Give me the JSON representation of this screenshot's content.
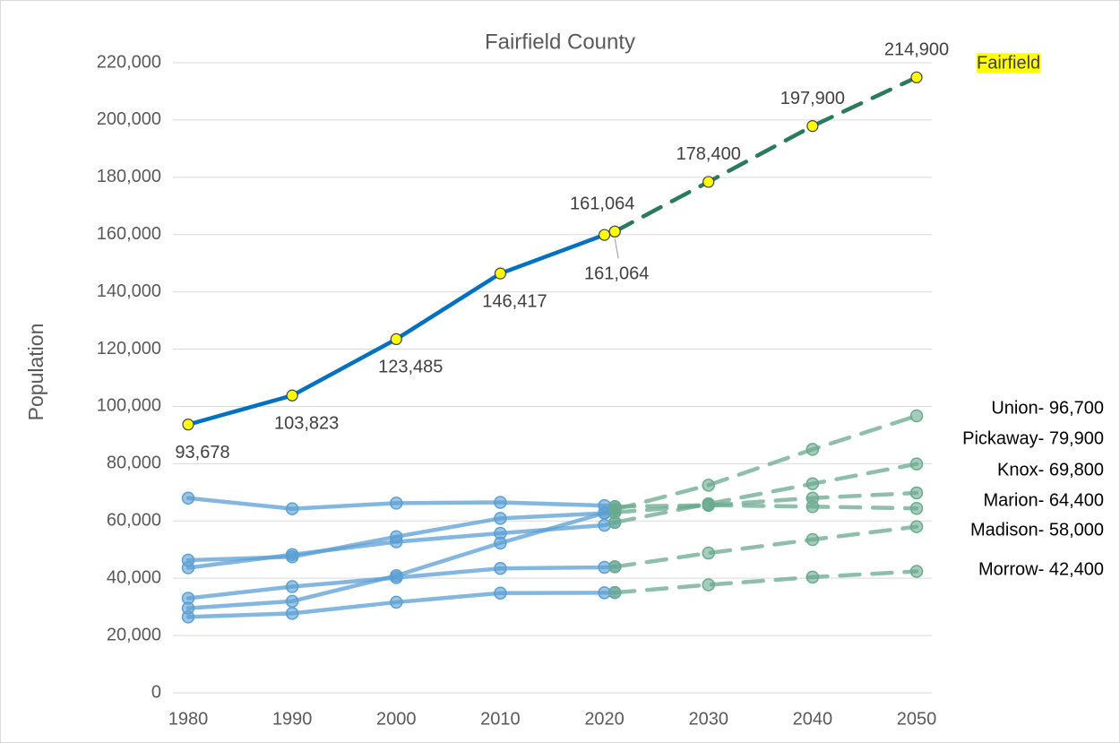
{
  "chart_data": {
    "type": "line",
    "title": "Fairfield County",
    "y_label": "Population",
    "x": [
      1980,
      1990,
      2000,
      2010,
      2020,
      2021,
      2030,
      2040,
      2050
    ],
    "xlim": [
      1980,
      2050
    ],
    "xticks": [
      1980,
      1990,
      2000,
      2010,
      2020,
      2030,
      2040,
      2050
    ],
    "ylim": [
      0,
      220000
    ],
    "yticks": [
      0,
      {
        "value": 20000,
        "label": "20,000"
      },
      {
        "value": 40000,
        "label": "40,000"
      },
      {
        "value": 60000,
        "label": "60,000"
      },
      {
        "value": 80000,
        "label": "80,000"
      },
      {
        "value": 100000,
        "label": "100,000"
      },
      {
        "value": 120000,
        "label": "120,000"
      },
      {
        "value": 140000,
        "label": "140,000"
      },
      {
        "value": 160000,
        "label": "160,000"
      },
      {
        "value": 180000,
        "label": "180,000"
      },
      {
        "value": 200000,
        "label": "200,000"
      },
      {
        "value": 220000,
        "label": "220,000"
      }
    ],
    "grid": true,
    "series": [
      {
        "color": "#0070c0",
        "marker_color": "#ffff00",
        "dashed": false,
        "opacity": 1,
        "values": [
          93678,
          103823,
          123485,
          146417,
          159900,
          161064,
          null,
          null,
          null
        ],
        "value_labels": [
          "93,678",
          "103,823",
          "123,485",
          "146,417",
          null,
          "161,064",
          null,
          null,
          null
        ]
      },
      {
        "name": "Fairfield",
        "color": "#2a7a5c",
        "marker_color": "#ffff00",
        "dashed": true,
        "opacity": 1,
        "values": [
          null,
          null,
          null,
          null,
          null,
          161064,
          178400,
          197900,
          214900
        ],
        "value_labels": [
          null,
          null,
          null,
          null,
          null,
          "161,064",
          "178,400",
          "197,900",
          "214,900"
        ]
      },
      {
        "color": "#5a9fd4",
        "marker_color": "#5a9fd4",
        "dashed": false,
        "opacity": 0.75,
        "values": [
          29536,
          31969,
          40909,
          52300,
          62784,
          64000,
          null,
          null,
          null
        ]
      },
      {
        "color": "#5a9fd4",
        "marker_color": "#5a9fd4",
        "dashed": false,
        "opacity": 0.75,
        "values": [
          43662,
          48255,
          52727,
          55698,
          58539,
          59500,
          null,
          null,
          null
        ]
      },
      {
        "color": "#5a9fd4",
        "marker_color": "#5a9fd4",
        "dashed": false,
        "opacity": 0.75,
        "values": [
          46304,
          47473,
          54500,
          60921,
          62721,
          63000,
          null,
          null,
          null
        ]
      },
      {
        "color": "#5a9fd4",
        "marker_color": "#5a9fd4",
        "dashed": false,
        "opacity": 0.75,
        "values": [
          67974,
          64274,
          66217,
          66501,
          65359,
          65000,
          null,
          null,
          null
        ]
      },
      {
        "color": "#5a9fd4",
        "marker_color": "#5a9fd4",
        "dashed": false,
        "opacity": 0.75,
        "values": [
          33004,
          37068,
          40213,
          43435,
          43824,
          44000,
          null,
          null,
          null
        ]
      },
      {
        "color": "#5a9fd4",
        "marker_color": "#5a9fd4",
        "dashed": false,
        "opacity": 0.75,
        "values": [
          26480,
          27749,
          31628,
          34827,
          34950,
          35000,
          null,
          null,
          null
        ]
      },
      {
        "color": "#6aaa8e",
        "marker_color": "#6aaa8e",
        "dashed": true,
        "opacity": 0.75,
        "values": [
          null,
          null,
          null,
          null,
          null,
          64000,
          72500,
          85000,
          96700
        ],
        "value_labels": [
          null,
          null,
          null,
          null,
          null,
          null,
          null,
          null,
          "Union- 96,700"
        ]
      },
      {
        "color": "#6aaa8e",
        "marker_color": "#6aaa8e",
        "dashed": true,
        "opacity": 0.75,
        "values": [
          null,
          null,
          null,
          null,
          null,
          59500,
          66000,
          73000,
          79900
        ],
        "value_labels": [
          null,
          null,
          null,
          null,
          null,
          null,
          null,
          null,
          "Pickaway- 79,900"
        ]
      },
      {
        "color": "#6aaa8e",
        "marker_color": "#6aaa8e",
        "dashed": true,
        "opacity": 0.75,
        "values": [
          null,
          null,
          null,
          null,
          null,
          63000,
          65500,
          68000,
          69800
        ],
        "value_labels": [
          null,
          null,
          null,
          null,
          null,
          null,
          null,
          null,
          "Knox- 69,800"
        ]
      },
      {
        "color": "#6aaa8e",
        "marker_color": "#6aaa8e",
        "dashed": true,
        "opacity": 0.75,
        "values": [
          null,
          null,
          null,
          null,
          null,
          65000,
          65500,
          65000,
          64400
        ],
        "value_labels": [
          null,
          null,
          null,
          null,
          null,
          null,
          null,
          null,
          "Marion- 64,400"
        ]
      },
      {
        "color": "#6aaa8e",
        "marker_color": "#6aaa8e",
        "dashed": true,
        "opacity": 0.75,
        "values": [
          null,
          null,
          null,
          null,
          null,
          44000,
          48800,
          53500,
          58000
        ],
        "value_labels": [
          null,
          null,
          null,
          null,
          null,
          null,
          null,
          null,
          "Madison- 58,000"
        ]
      },
      {
        "color": "#6aaa8e",
        "marker_color": "#6aaa8e",
        "dashed": true,
        "opacity": 0.75,
        "values": [
          null,
          null,
          null,
          null,
          null,
          35000,
          37700,
          40400,
          42400
        ],
        "value_labels": [
          null,
          null,
          null,
          null,
          null,
          null,
          null,
          null,
          "Morrow- 42,400"
        ]
      }
    ]
  }
}
